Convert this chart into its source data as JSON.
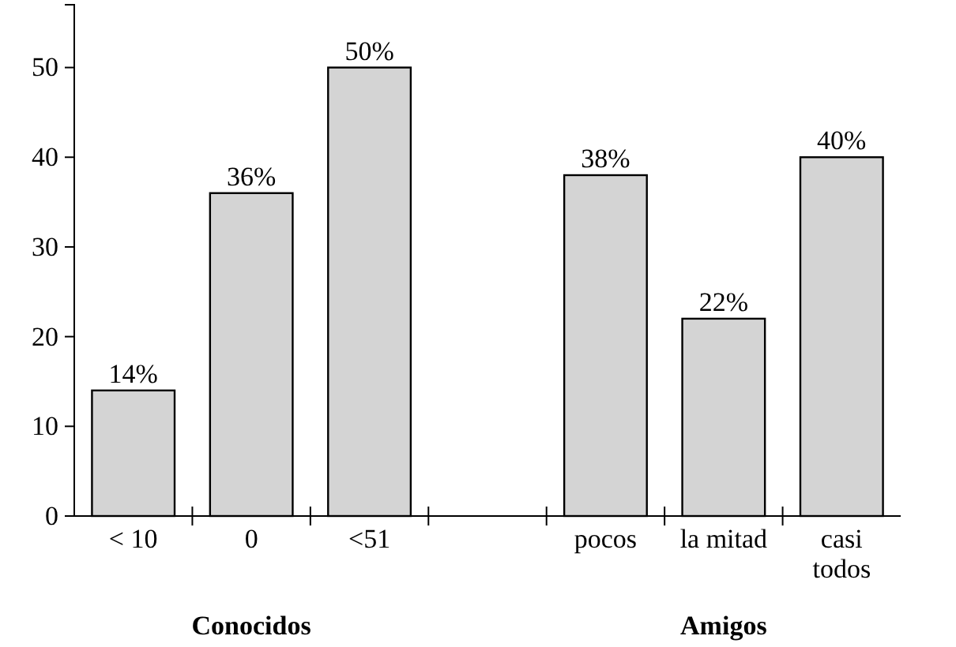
{
  "chart_data": {
    "type": "bar",
    "categories": [
      "< 10",
      "0",
      "<51",
      null,
      "pocos",
      "la mitad",
      "casi todos"
    ],
    "values": [
      14,
      36,
      50,
      null,
      38,
      22,
      40
    ],
    "value_labels": [
      "14%",
      "36%",
      "50%",
      null,
      "38%",
      "22%",
      "40%"
    ],
    "color": "#d4d4d4",
    "ylim": [
      0,
      57
    ],
    "yticks": [
      0,
      10,
      20,
      30,
      40,
      50
    ],
    "grid": false,
    "annotations": [
      "Conocidos",
      "Amigos"
    ]
  }
}
